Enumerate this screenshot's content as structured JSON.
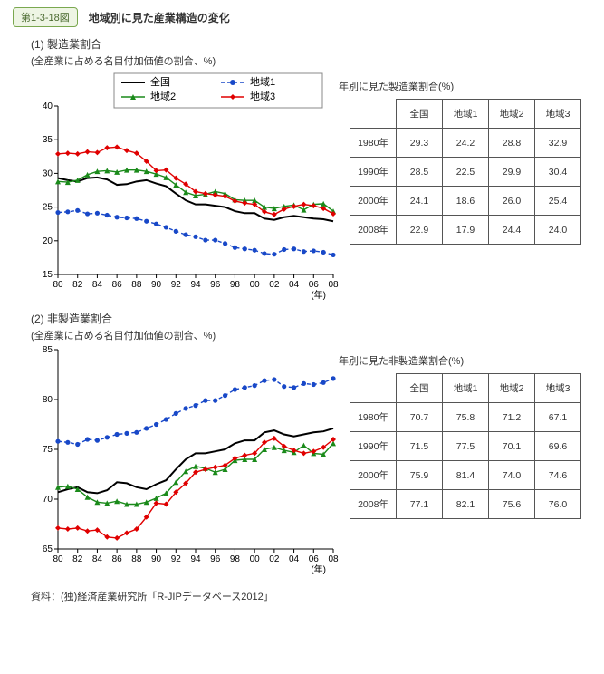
{
  "header": {
    "tag": "第1-3-18図",
    "title": "地域別に見た産業構造の変化"
  },
  "footnote": "資料：(独)経済産業研究所「R-JIPデータベース2012」",
  "common": {
    "xlabel": "(年)",
    "xTicks": [
      "80",
      "82",
      "84",
      "86",
      "88",
      "90",
      "92",
      "94",
      "96",
      "98",
      "00",
      "02",
      "04",
      "06",
      "08"
    ],
    "xValues": [
      1980,
      1982,
      1984,
      1986,
      1988,
      1990,
      1992,
      1994,
      1996,
      1998,
      2000,
      2002,
      2004,
      2006,
      2008
    ],
    "xYears": [
      1980,
      1981,
      1982,
      1983,
      1984,
      1985,
      1986,
      1987,
      1988,
      1989,
      1990,
      1991,
      1992,
      1993,
      1994,
      1995,
      1996,
      1997,
      1998,
      1999,
      2000,
      2001,
      2002,
      2003,
      2004,
      2005,
      2006,
      2007,
      2008
    ],
    "legend": [
      {
        "name": "全国",
        "color": "#000000",
        "marker": "line",
        "dash": null
      },
      {
        "name": "地域1",
        "color": "#1848c8",
        "marker": "circle",
        "dash": "4 3"
      },
      {
        "name": "地域2",
        "color": "#1a8a1a",
        "marker": "triangle",
        "dash": null
      },
      {
        "name": "地域3",
        "color": "#e00000",
        "marker": "diamond",
        "dash": null
      }
    ],
    "axisColor": "#000",
    "gridColor": "#c8c8c8",
    "background": "#ffffff",
    "axisFont": 11,
    "tickFont": 10
  },
  "chart1": {
    "title": "(1) 製造業割合",
    "subtitle": "(全産業に占める名目付加価値の割合、%)",
    "ylim": [
      15,
      40
    ],
    "ytick": 5,
    "series": {
      "全国": [
        29.3,
        29.0,
        28.8,
        29.3,
        29.4,
        29.1,
        28.3,
        28.4,
        28.8,
        29.0,
        28.5,
        28.1,
        27.0,
        26.0,
        25.4,
        25.4,
        25.2,
        25.0,
        24.4,
        24.1,
        24.1,
        23.3,
        23.1,
        23.5,
        23.7,
        23.5,
        23.3,
        23.2,
        22.9
      ],
      "地域1": [
        24.2,
        24.3,
        24.5,
        24.0,
        24.1,
        23.8,
        23.5,
        23.4,
        23.3,
        22.9,
        22.5,
        22.0,
        21.4,
        20.9,
        20.6,
        20.1,
        20.1,
        19.6,
        19.0,
        18.8,
        18.6,
        18.1,
        18.0,
        18.7,
        18.8,
        18.4,
        18.5,
        18.3,
        17.9
      ],
      "地域2": [
        28.8,
        28.7,
        29.0,
        29.8,
        30.3,
        30.4,
        30.2,
        30.5,
        30.5,
        30.3,
        29.9,
        29.4,
        28.3,
        27.2,
        26.7,
        26.9,
        27.3,
        27.0,
        26.1,
        26.0,
        26.0,
        25.0,
        24.8,
        25.1,
        25.3,
        24.6,
        25.4,
        25.5,
        24.4
      ],
      "地域3": [
        32.9,
        33.0,
        32.9,
        33.2,
        33.1,
        33.8,
        33.9,
        33.4,
        33.0,
        31.8,
        30.4,
        30.5,
        29.3,
        28.4,
        27.3,
        27.0,
        26.8,
        26.6,
        25.9,
        25.6,
        25.4,
        24.3,
        23.9,
        24.7,
        25.1,
        25.4,
        25.2,
        24.8,
        24.0
      ]
    },
    "tableTitle": "年別に見た製造業割合(%)",
    "tableRows": [
      {
        "year": "1980年",
        "全国": "29.3",
        "地域1": "24.2",
        "地域2": "28.8",
        "地域3": "32.9"
      },
      {
        "year": "1990年",
        "全国": "28.5",
        "地域1": "22.5",
        "地域2": "29.9",
        "地域3": "30.4"
      },
      {
        "year": "2000年",
        "全国": "24.1",
        "地域1": "18.6",
        "地域2": "26.0",
        "地域3": "25.4"
      },
      {
        "year": "2008年",
        "全国": "22.9",
        "地域1": "17.9",
        "地域2": "24.4",
        "地域3": "24.0"
      }
    ]
  },
  "chart2": {
    "title": "(2) 非製造業割合",
    "subtitle": "(全産業に占める名目付加価値の割合、%)",
    "ylim": [
      65,
      85
    ],
    "ytick": 5,
    "series": {
      "全国": [
        70.7,
        71.0,
        71.2,
        70.7,
        70.6,
        70.9,
        71.7,
        71.6,
        71.2,
        71.0,
        71.5,
        71.9,
        73.0,
        74.0,
        74.6,
        74.6,
        74.8,
        75.0,
        75.6,
        75.9,
        75.9,
        76.7,
        76.9,
        76.5,
        76.3,
        76.5,
        76.7,
        76.8,
        77.1
      ],
      "地域1": [
        75.8,
        75.7,
        75.5,
        76.0,
        75.9,
        76.2,
        76.5,
        76.6,
        76.7,
        77.1,
        77.5,
        78.0,
        78.6,
        79.1,
        79.4,
        79.9,
        79.9,
        80.4,
        81.0,
        81.2,
        81.4,
        81.9,
        82.0,
        81.3,
        81.2,
        81.6,
        81.5,
        81.7,
        82.1
      ],
      "地域2": [
        71.2,
        71.3,
        71.0,
        70.2,
        69.7,
        69.6,
        69.8,
        69.5,
        69.5,
        69.7,
        70.1,
        70.6,
        71.7,
        72.8,
        73.3,
        73.1,
        72.7,
        73.0,
        73.9,
        74.0,
        74.0,
        75.0,
        75.2,
        74.9,
        74.7,
        75.4,
        74.6,
        74.5,
        75.6
      ],
      "地域3": [
        67.1,
        67.0,
        67.1,
        66.8,
        66.9,
        66.2,
        66.1,
        66.6,
        67.0,
        68.2,
        69.6,
        69.5,
        70.7,
        71.6,
        72.7,
        73.0,
        73.2,
        73.4,
        74.1,
        74.4,
        74.6,
        75.7,
        76.1,
        75.3,
        74.9,
        74.6,
        74.8,
        75.2,
        76.0
      ]
    },
    "tableTitle": "年別に見た非製造業割合(%)",
    "tableRows": [
      {
        "year": "1980年",
        "全国": "70.7",
        "地域1": "75.8",
        "地域2": "71.2",
        "地域3": "67.1"
      },
      {
        "year": "1990年",
        "全国": "71.5",
        "地域1": "77.5",
        "地域2": "70.1",
        "地域3": "69.6"
      },
      {
        "year": "2000年",
        "全国": "75.9",
        "地域1": "81.4",
        "地域2": "74.0",
        "地域3": "74.6"
      },
      {
        "year": "2008年",
        "全国": "77.1",
        "地域1": "82.1",
        "地域2": "75.6",
        "地域3": "76.0"
      }
    ]
  }
}
